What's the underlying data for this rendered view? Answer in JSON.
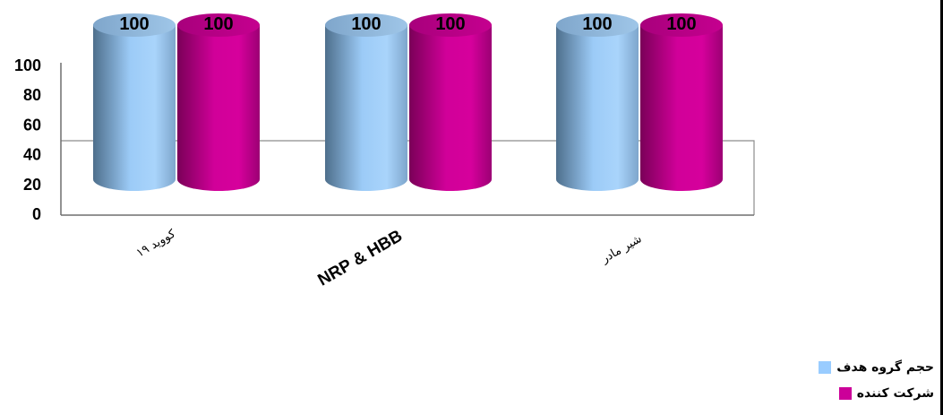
{
  "chart_data": {
    "type": "bar",
    "categories": [
      "کووید ۱۹",
      "NRP & HBB",
      "شیر مادر"
    ],
    "series": [
      {
        "name": "حجم گروه هدف",
        "values": [
          100,
          100,
          100
        ],
        "color": "#99ccff"
      },
      {
        "name": "شرکت کننده",
        "values": [
          100,
          100,
          100
        ],
        "color": "#cc0099"
      }
    ],
    "ylim": [
      0,
      100
    ],
    "yticks": [
      "0",
      "20",
      "40",
      "60",
      "80",
      "100"
    ],
    "legend_position": "bottom-right",
    "grid": false
  }
}
